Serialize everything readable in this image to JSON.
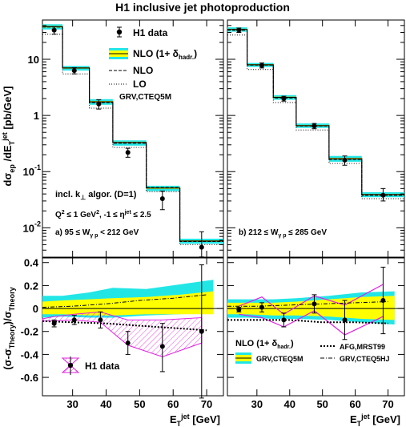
{
  "title": "H1 inclusive jet photoproduction",
  "colors": {
    "cyan": "#22e6e6",
    "yellow": "#ffff00",
    "magenta": "#e020e0",
    "black": "#000000"
  },
  "ticks": {
    "top_y": [
      {
        "v": 10,
        "t": "10"
      },
      {
        "v": 1,
        "t": "1"
      },
      {
        "v": 0.1,
        "t": "10",
        "sup": "-1"
      },
      {
        "v": 0.01,
        "t": "10",
        "sup": "-2"
      }
    ],
    "bottom_y": [
      0.4,
      0.2,
      0,
      -0.2,
      -0.4,
      -0.6
    ],
    "bottom_y_labels": [
      "0.4",
      "0.2",
      "0",
      "-0.2",
      "-0.4",
      "-0.6"
    ],
    "x": [
      30,
      40,
      50,
      60,
      70
    ],
    "x_labels": [
      "30",
      "40",
      "50",
      "60",
      "70"
    ]
  },
  "axis_labels": {
    "top_y": "dσ_ep / dE_T^jet [pb/GeV]",
    "bottom_y": "(σ-σ_Theory)/σ_Theory",
    "x": "E_T^jet [GeV]"
  },
  "legends": {
    "top_left": [
      "H1 data",
      "NLO (1+ δ_hadr.)",
      "NLO",
      "LO",
      "GRV,CTEQ5M"
    ],
    "bottom_left": [
      "H1 data"
    ],
    "bottom_right": [
      "NLO (1+ δ_hadr.)",
      "GRV,CTEQ5M",
      "AFG,MRST99",
      "GRV,CTEQ5HJ"
    ]
  },
  "annotations": {
    "algo": "incl. k⊥ algor. (D=1)",
    "cuts": "Q² ≤ 1 GeV², -1 ≤ η^jet ≤ 2.5",
    "panel_a": "a) 95 ≤ W_γp < 212 GeV",
    "panel_b": "b) 212 ≤ W_γp ≤ 285 GeV"
  },
  "chart_data": [
    {
      "type": "line",
      "panel": "a) 95 ≤ Wγp < 212 GeV, cross section",
      "x_bins": [
        [
          21,
          27
        ],
        [
          27,
          35
        ],
        [
          35,
          42
        ],
        [
          42,
          52
        ],
        [
          52,
          62
        ],
        [
          62,
          75
        ]
      ],
      "y_log": true,
      "ylim": [
        0.003,
        50
      ],
      "xlim": [
        21,
        75
      ],
      "data": {
        "x": [
          24.5,
          30.5,
          37.8,
          46.5,
          56.8,
          68.5
        ],
        "y": [
          33,
          6.3,
          1.6,
          0.22,
          0.033,
          0.0045
        ],
        "err_up": [
          5,
          0.8,
          0.3,
          0.04,
          0.012,
          0.004
        ],
        "err_dn": [
          5,
          0.8,
          0.3,
          0.04,
          0.012,
          0.002
        ]
      },
      "nlo_hadr": [
        38,
        7.0,
        1.75,
        0.33,
        0.051,
        0.0058
      ],
      "band_lo": [
        34,
        6.3,
        1.55,
        0.29,
        0.045,
        0.0052
      ],
      "band_hi": [
        42,
        7.6,
        1.95,
        0.36,
        0.056,
        0.0064
      ],
      "nlo": [
        37.5,
        7.0,
        1.7,
        0.32,
        0.052,
        0.0057
      ],
      "lo": [
        28,
        5.5,
        1.35,
        0.27,
        0.044,
        0.005
      ]
    },
    {
      "type": "line",
      "panel": "b) 212 ≤ Wγp ≤ 285 GeV, cross section",
      "x_bins": [
        [
          21,
          27
        ],
        [
          27,
          35
        ],
        [
          35,
          42
        ],
        [
          42,
          52
        ],
        [
          52,
          62
        ],
        [
          62,
          75
        ]
      ],
      "y_log": true,
      "ylim": [
        0.003,
        50
      ],
      "xlim": [
        21,
        75
      ],
      "data": {
        "x": [
          24.5,
          31.5,
          38.2,
          47.5,
          56.8,
          68.5
        ],
        "y": [
          33,
          7.8,
          2.0,
          0.65,
          0.16,
          0.038
        ],
        "err_up": [
          3,
          0.8,
          0.2,
          0.07,
          0.03,
          0.012
        ],
        "err_dn": [
          3,
          0.8,
          0.2,
          0.07,
          0.03,
          0.008
        ]
      },
      "nlo_hadr": [
        34,
        8.0,
        2.1,
        0.66,
        0.17,
        0.039
      ],
      "band_lo": [
        31,
        7.3,
        1.9,
        0.6,
        0.15,
        0.035
      ],
      "band_hi": [
        37,
        8.6,
        2.3,
        0.72,
        0.19,
        0.043
      ],
      "nlo": [
        33,
        7.9,
        2.05,
        0.65,
        0.165,
        0.038
      ],
      "lo": [
        27,
        6.6,
        1.7,
        0.55,
        0.14,
        0.033
      ]
    },
    {
      "type": "line",
      "panel": "a) relative difference",
      "xlim": [
        21,
        75
      ],
      "ylim": [
        -0.76,
        0.44
      ],
      "data": {
        "x": [
          24.5,
          30.5,
          38.3,
          46.5,
          56.8,
          68.5
        ],
        "y": [
          -0.13,
          -0.1,
          -0.1,
          -0.3,
          -0.33,
          -0.2
        ],
        "err_up": [
          0.03,
          0.04,
          0.07,
          0.1,
          0.2,
          0.58
        ],
        "err_dn": [
          0.03,
          0.04,
          0.07,
          0.1,
          0.22,
          0.58
        ]
      },
      "band_x": [
        21,
        27,
        35,
        42,
        52,
        62,
        72
      ],
      "band_cyan_hi": [
        0.11,
        0.11,
        0.14,
        0.18,
        0.17,
        0.21,
        0.25
      ],
      "band_cyan_lo": [
        -0.08,
        -0.07,
        -0.08,
        -0.08,
        -0.06,
        -0.05,
        -0.04
      ],
      "band_yel_hi": [
        0.06,
        0.07,
        0.08,
        0.09,
        0.1,
        0.12,
        0.15
      ],
      "band_yel_lo": [
        -0.05,
        -0.05,
        -0.06,
        -0.06,
        -0.05,
        -0.05,
        -0.05
      ],
      "hatch_x": [
        21,
        24.5,
        30.5,
        38.3,
        46.5,
        56.8,
        68.5
      ],
      "hatch_hi": [
        -0.09,
        -0.07,
        -0.05,
        -0.03,
        -0.1,
        -0.1,
        -0.08
      ],
      "hatch_lo": [
        -0.11,
        -0.11,
        -0.1,
        -0.12,
        -0.32,
        -0.42,
        -0.3
      ],
      "afg_x": [
        21,
        30,
        40,
        50,
        60,
        70
      ],
      "afg": [
        -0.11,
        -0.12,
        -0.13,
        -0.15,
        -0.17,
        -0.19
      ],
      "cteq5hj_x": [
        21,
        30,
        40,
        50,
        60,
        70
      ],
      "cteq5hj": [
        0.01,
        0.02,
        0.04,
        0.07,
        0.09,
        0.12
      ]
    },
    {
      "type": "line",
      "panel": "b) relative difference",
      "xlim": [
        21,
        75
      ],
      "ylim": [
        -0.76,
        0.44
      ],
      "data": {
        "x": [
          24.5,
          31.5,
          38.2,
          47.5,
          56.8,
          68.5
        ],
        "y": [
          -0.01,
          0.01,
          -0.1,
          0.04,
          -0.1,
          0.07
        ],
        "err_up": [
          0.02,
          0.04,
          0.06,
          0.08,
          0.17,
          0.29
        ],
        "err_dn": [
          0.02,
          0.04,
          0.06,
          0.08,
          0.17,
          0.29
        ]
      },
      "band_x": [
        21,
        27,
        35,
        42,
        52,
        62,
        72
      ],
      "band_cyan_hi": [
        0.08,
        0.08,
        0.08,
        0.09,
        0.11,
        0.14,
        0.15
      ],
      "band_cyan_lo": [
        -0.08,
        -0.08,
        -0.09,
        -0.09,
        -0.1,
        -0.12,
        -0.14
      ],
      "band_yel_hi": [
        0.05,
        0.05,
        0.05,
        0.06,
        0.08,
        0.1,
        0.11
      ],
      "band_yel_lo": [
        -0.05,
        -0.05,
        -0.06,
        -0.06,
        -0.07,
        -0.09,
        -0.1
      ],
      "mag_x": [
        24.5,
        31.5,
        38.2,
        47.5,
        56.8,
        68.5
      ],
      "mag_hi": [
        0.02,
        0.1,
        -0.05,
        0.11,
        0.03,
        0.21
      ],
      "mag_lo": [
        -0.05,
        -0.08,
        -0.16,
        -0.02,
        -0.23,
        -0.07
      ],
      "afg_x": [
        21,
        30,
        40,
        50,
        60,
        70
      ],
      "afg": [
        -0.1,
        -0.1,
        -0.1,
        -0.12,
        -0.12,
        -0.13
      ],
      "cteq5hj_x": [
        21,
        30,
        40,
        50,
        60,
        70
      ],
      "cteq5hj": [
        0.02,
        0.02,
        0.03,
        0.04,
        0.05,
        0.06
      ]
    }
  ]
}
